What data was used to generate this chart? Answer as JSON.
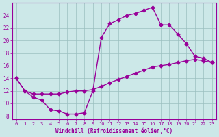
{
  "xlabel": "Windchill (Refroidissement éolien,°C)",
  "bg_color": "#cce8e8",
  "line_color": "#990099",
  "marker": "D",
  "marker_size": 2.5,
  "line_width": 1.0,
  "xlim": [
    -0.5,
    23.5
  ],
  "ylim": [
    7.5,
    26.0
  ],
  "xticks": [
    0,
    1,
    2,
    3,
    4,
    5,
    6,
    7,
    8,
    9,
    10,
    11,
    12,
    13,
    14,
    15,
    16,
    17,
    18,
    19,
    20,
    21,
    22,
    23
  ],
  "yticks": [
    8,
    10,
    12,
    14,
    16,
    18,
    20,
    22,
    24
  ],
  "grid_color": "#9bbfbf",
  "curve1_x": [
    0,
    1,
    2,
    3,
    4,
    5,
    6,
    7,
    8,
    9,
    10,
    11,
    12,
    13,
    14,
    15,
    16,
    17
  ],
  "curve1_y": [
    14,
    12,
    11,
    10.5,
    9.0,
    8.8,
    8.3,
    8.3,
    8.5,
    12.0,
    20.5,
    22.7,
    23.3,
    24.0,
    24.3,
    24.8,
    25.3,
    22.5
  ],
  "curve2_x": [
    17,
    18,
    19,
    20,
    21,
    22,
    23
  ],
  "curve2_y": [
    22.5,
    22.5,
    21.0,
    19.5,
    17.5,
    17.2,
    16.5
  ],
  "curve3_x": [
    0,
    1,
    2,
    3,
    4,
    5,
    6,
    7,
    8,
    9,
    10,
    11,
    12,
    13,
    14,
    15,
    16,
    17,
    18,
    19,
    20,
    21,
    22,
    23
  ],
  "curve3_y": [
    14,
    12,
    11.5,
    11.5,
    11.5,
    11.5,
    11.8,
    12.0,
    12.0,
    12.2,
    12.7,
    13.3,
    13.8,
    14.3,
    14.8,
    15.3,
    15.8,
    16.0,
    16.2,
    16.5,
    16.8,
    17.0,
    16.8,
    16.5
  ]
}
